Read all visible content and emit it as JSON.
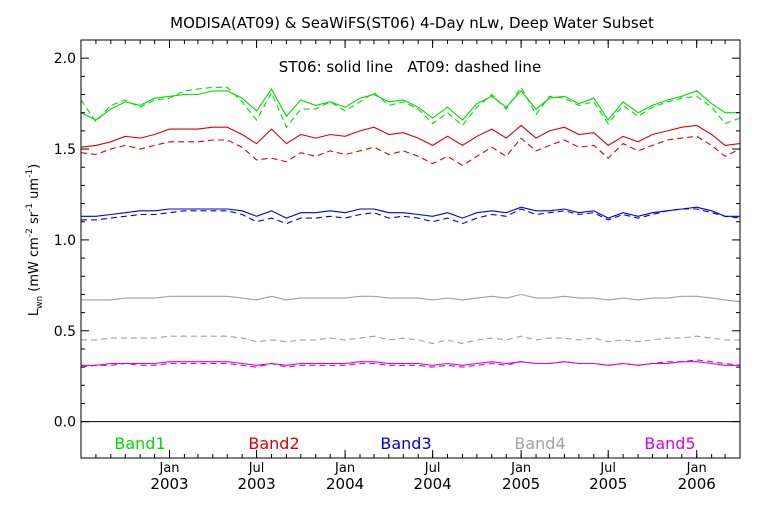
{
  "chart_data": {
    "type": "line",
    "title": "MODISA(AT09) & SeaWiFS(ST06) 4-Day nLw, Deep Water Subset",
    "annotation": "ST06: solid line   AT09: dashed line",
    "ylabel": {
      "main": "L",
      "sub": "wn",
      "rest": " (mW cm",
      "sup1": "-2",
      "mid1": " sr",
      "sup2": "-1",
      "mid2": " um",
      "sup3": "-1",
      "end": ")"
    },
    "ylim": [
      -0.2,
      2.1
    ],
    "xlim": [
      "2002-07-01",
      "2006-04-01"
    ],
    "y_ticks": [
      "0.0",
      "0.5",
      "1.0",
      "1.5",
      "2.0"
    ],
    "x_ticks": [
      {
        "date": "2003-01-01",
        "month": "Jan",
        "year": "2003"
      },
      {
        "date": "2003-07-01",
        "month": "Jul",
        "year": "2003"
      },
      {
        "date": "2004-01-01",
        "month": "Jan",
        "year": "2004"
      },
      {
        "date": "2004-07-01",
        "month": "Jul",
        "year": "2004"
      },
      {
        "date": "2005-01-01",
        "month": "Jan",
        "year": "2005"
      },
      {
        "date": "2005-07-01",
        "month": "Jul",
        "year": "2005"
      },
      {
        "date": "2006-01-01",
        "month": "Jan",
        "year": "2006"
      }
    ],
    "zero_line": 0.0,
    "dates": [
      "2002-07-01",
      "2002-08-01",
      "2002-09-01",
      "2002-10-01",
      "2002-11-01",
      "2002-12-01",
      "2003-01-01",
      "2003-02-01",
      "2003-03-01",
      "2003-04-01",
      "2003-05-01",
      "2003-06-01",
      "2003-07-01",
      "2003-08-01",
      "2003-09-01",
      "2003-10-01",
      "2003-11-01",
      "2003-12-01",
      "2004-01-01",
      "2004-02-01",
      "2004-03-01",
      "2004-04-01",
      "2004-05-01",
      "2004-06-01",
      "2004-07-01",
      "2004-08-01",
      "2004-09-01",
      "2004-10-01",
      "2004-11-01",
      "2004-12-01",
      "2005-01-01",
      "2005-02-01",
      "2005-03-01",
      "2005-04-01",
      "2005-05-01",
      "2005-06-01",
      "2005-07-01",
      "2005-08-01",
      "2005-09-01",
      "2005-10-01",
      "2005-11-01",
      "2005-12-01",
      "2006-01-01",
      "2006-02-01",
      "2006-03-01",
      "2006-04-01"
    ],
    "series": [
      {
        "name": "Band1",
        "color": "#00dd00",
        "style": "solid",
        "values": [
          1.7,
          1.66,
          1.72,
          1.76,
          1.74,
          1.78,
          1.79,
          1.8,
          1.8,
          1.82,
          1.82,
          1.78,
          1.71,
          1.83,
          1.68,
          1.77,
          1.74,
          1.76,
          1.73,
          1.78,
          1.8,
          1.76,
          1.77,
          1.73,
          1.67,
          1.73,
          1.66,
          1.75,
          1.79,
          1.73,
          1.82,
          1.72,
          1.78,
          1.79,
          1.75,
          1.78,
          1.66,
          1.76,
          1.7,
          1.74,
          1.77,
          1.79,
          1.82,
          1.75,
          1.7,
          1.7
        ]
      },
      {
        "name": "Band1",
        "color": "#00dd00",
        "style": "dashed",
        "values": [
          1.77,
          1.65,
          1.74,
          1.77,
          1.73,
          1.77,
          1.78,
          1.82,
          1.83,
          1.84,
          1.84,
          1.76,
          1.66,
          1.81,
          1.62,
          1.72,
          1.72,
          1.76,
          1.71,
          1.76,
          1.81,
          1.74,
          1.76,
          1.72,
          1.64,
          1.7,
          1.63,
          1.73,
          1.8,
          1.72,
          1.84,
          1.69,
          1.79,
          1.78,
          1.74,
          1.76,
          1.64,
          1.74,
          1.68,
          1.73,
          1.76,
          1.78,
          1.79,
          1.73,
          1.64,
          1.67
        ]
      },
      {
        "name": "Band2",
        "color": "#dd0000",
        "style": "solid",
        "values": [
          1.51,
          1.52,
          1.54,
          1.57,
          1.56,
          1.58,
          1.61,
          1.61,
          1.61,
          1.62,
          1.62,
          1.58,
          1.53,
          1.61,
          1.53,
          1.58,
          1.56,
          1.58,
          1.57,
          1.6,
          1.62,
          1.58,
          1.59,
          1.56,
          1.52,
          1.57,
          1.52,
          1.57,
          1.61,
          1.56,
          1.63,
          1.56,
          1.6,
          1.62,
          1.58,
          1.59,
          1.52,
          1.57,
          1.54,
          1.58,
          1.6,
          1.62,
          1.63,
          1.58,
          1.52,
          1.53
        ]
      },
      {
        "name": "Band2",
        "color": "#dd0000",
        "style": "dashed",
        "values": [
          1.48,
          1.47,
          1.5,
          1.52,
          1.5,
          1.52,
          1.54,
          1.54,
          1.54,
          1.55,
          1.55,
          1.51,
          1.44,
          1.45,
          1.43,
          1.48,
          1.46,
          1.49,
          1.47,
          1.49,
          1.51,
          1.47,
          1.49,
          1.46,
          1.42,
          1.46,
          1.41,
          1.46,
          1.51,
          1.46,
          1.56,
          1.49,
          1.52,
          1.55,
          1.51,
          1.52,
          1.45,
          1.53,
          1.49,
          1.52,
          1.55,
          1.56,
          1.57,
          1.52,
          1.46,
          1.5
        ]
      },
      {
        "name": "Band3",
        "color": "#0000dd",
        "style": "solid",
        "values": [
          1.13,
          1.13,
          1.14,
          1.15,
          1.16,
          1.16,
          1.17,
          1.17,
          1.17,
          1.17,
          1.17,
          1.16,
          1.13,
          1.16,
          1.12,
          1.15,
          1.15,
          1.16,
          1.15,
          1.17,
          1.17,
          1.15,
          1.15,
          1.14,
          1.13,
          1.15,
          1.12,
          1.15,
          1.16,
          1.15,
          1.18,
          1.16,
          1.16,
          1.17,
          1.15,
          1.16,
          1.12,
          1.15,
          1.13,
          1.15,
          1.16,
          1.17,
          1.18,
          1.16,
          1.13,
          1.13
        ]
      },
      {
        "name": "Band3",
        "color": "#0000dd",
        "style": "dashed",
        "values": [
          1.11,
          1.11,
          1.12,
          1.13,
          1.14,
          1.14,
          1.15,
          1.16,
          1.16,
          1.16,
          1.16,
          1.14,
          1.1,
          1.12,
          1.09,
          1.12,
          1.12,
          1.13,
          1.12,
          1.14,
          1.15,
          1.12,
          1.13,
          1.12,
          1.1,
          1.12,
          1.09,
          1.12,
          1.14,
          1.13,
          1.17,
          1.14,
          1.15,
          1.16,
          1.14,
          1.15,
          1.11,
          1.14,
          1.12,
          1.14,
          1.16,
          1.17,
          1.17,
          1.15,
          1.13,
          1.12
        ]
      },
      {
        "name": "Band4",
        "color": "#a0a0a0",
        "style": "solid",
        "values": [
          0.67,
          0.67,
          0.67,
          0.68,
          0.68,
          0.68,
          0.69,
          0.69,
          0.69,
          0.69,
          0.69,
          0.68,
          0.67,
          0.69,
          0.67,
          0.68,
          0.68,
          0.68,
          0.68,
          0.69,
          0.69,
          0.68,
          0.68,
          0.68,
          0.67,
          0.68,
          0.67,
          0.68,
          0.69,
          0.68,
          0.7,
          0.68,
          0.68,
          0.69,
          0.68,
          0.68,
          0.67,
          0.68,
          0.67,
          0.68,
          0.68,
          0.69,
          0.69,
          0.68,
          0.67,
          0.66
        ]
      },
      {
        "name": "Band4",
        "color": "#a0a0a0",
        "style": "dashed",
        "values": [
          0.45,
          0.45,
          0.46,
          0.46,
          0.46,
          0.46,
          0.47,
          0.47,
          0.47,
          0.47,
          0.47,
          0.46,
          0.44,
          0.45,
          0.44,
          0.45,
          0.45,
          0.46,
          0.45,
          0.46,
          0.47,
          0.45,
          0.46,
          0.45,
          0.43,
          0.45,
          0.43,
          0.45,
          0.46,
          0.45,
          0.47,
          0.45,
          0.46,
          0.46,
          0.45,
          0.46,
          0.44,
          0.45,
          0.44,
          0.45,
          0.46,
          0.46,
          0.47,
          0.46,
          0.45,
          0.45
        ]
      },
      {
        "name": "Band5",
        "color": "#dd00dd",
        "style": "solid",
        "values": [
          0.31,
          0.31,
          0.32,
          0.32,
          0.32,
          0.32,
          0.33,
          0.33,
          0.33,
          0.33,
          0.33,
          0.32,
          0.31,
          0.32,
          0.31,
          0.32,
          0.32,
          0.32,
          0.32,
          0.33,
          0.33,
          0.32,
          0.32,
          0.32,
          0.31,
          0.32,
          0.31,
          0.32,
          0.33,
          0.32,
          0.33,
          0.32,
          0.32,
          0.33,
          0.32,
          0.32,
          0.31,
          0.32,
          0.31,
          0.32,
          0.32,
          0.33,
          0.33,
          0.32,
          0.31,
          0.31
        ]
      },
      {
        "name": "Band5",
        "color": "#dd00dd",
        "style": "dashed",
        "values": [
          0.3,
          0.31,
          0.31,
          0.32,
          0.31,
          0.31,
          0.32,
          0.32,
          0.32,
          0.32,
          0.32,
          0.31,
          0.3,
          0.32,
          0.3,
          0.31,
          0.31,
          0.31,
          0.31,
          0.32,
          0.32,
          0.31,
          0.31,
          0.31,
          0.3,
          0.31,
          0.3,
          0.31,
          0.32,
          0.31,
          0.33,
          0.32,
          0.32,
          0.33,
          0.32,
          0.32,
          0.31,
          0.32,
          0.31,
          0.32,
          0.33,
          0.33,
          0.34,
          0.33,
          0.32,
          0.31
        ]
      }
    ],
    "legend": [
      {
        "label": "Band1",
        "color": "#00dd00"
      },
      {
        "label": "Band2",
        "color": "#dd0000"
      },
      {
        "label": "Band3",
        "color": "#0000dd"
      },
      {
        "label": "Band4",
        "color": "#a0a0a0"
      },
      {
        "label": "Band5",
        "color": "#dd00dd"
      }
    ],
    "legend_placement": "bottom inside plot",
    "grid": false
  }
}
